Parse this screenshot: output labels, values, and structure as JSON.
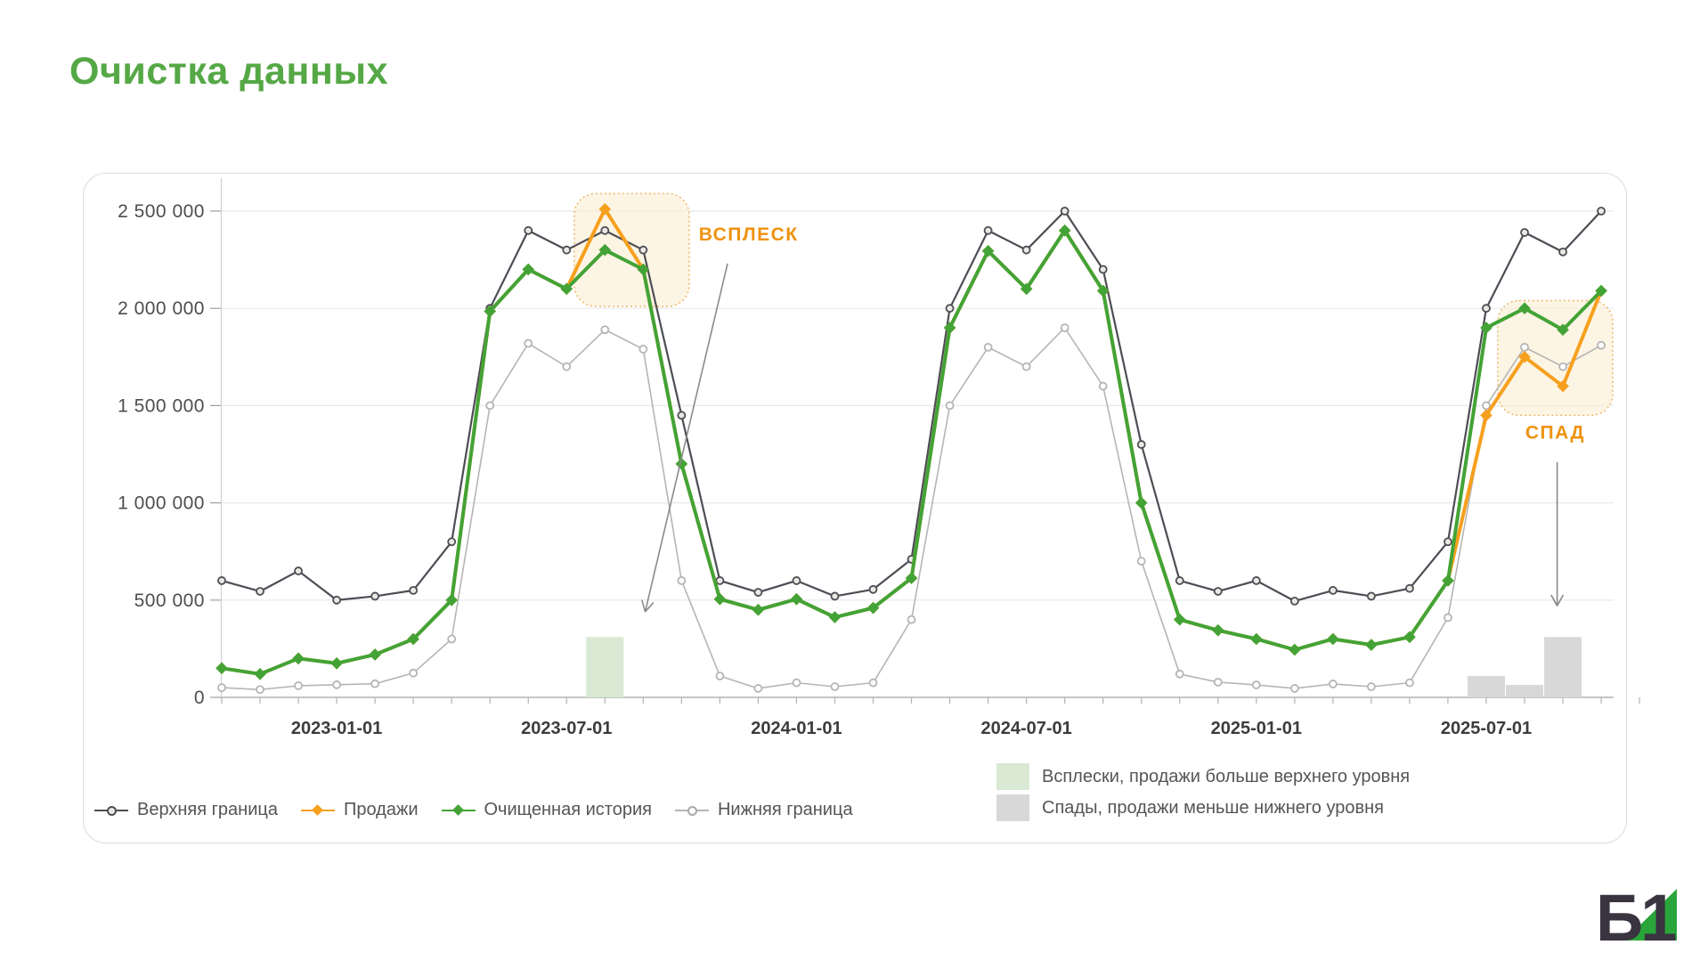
{
  "page": {
    "title": "Очистка данных"
  },
  "logo": {
    "text": "Б1",
    "accent_color": "#2aa53a",
    "text_color": "#3a3340"
  },
  "legend": {
    "series": [
      {
        "label": "Верхняя граница"
      },
      {
        "label": "Продажи"
      },
      {
        "label": "Очищенная история"
      },
      {
        "label": "Нижняя граница"
      }
    ],
    "areas": [
      {
        "label": "Всплески, продажи больше верхнего уровня",
        "color": "#d9e9d4"
      },
      {
        "label": "Спады, продажи меньше нижнего уровня",
        "color": "#d8d8d8"
      }
    ]
  },
  "chart_data": {
    "type": "line",
    "title": "Очистка данных",
    "grid": true,
    "ylim": [
      0,
      2625000
    ],
    "y_ticks": [
      {
        "value": 0,
        "label": "0"
      },
      {
        "value": 500000,
        "label": "500 000"
      },
      {
        "value": 1000000,
        "label": "1 000 000"
      },
      {
        "value": 1500000,
        "label": "1 500 000"
      },
      {
        "value": 2000000,
        "label": "2 000 000"
      },
      {
        "value": 2500000,
        "label": "2 500 000"
      }
    ],
    "x_ticks": [
      {
        "month_index": 3,
        "label": "2023-01-01"
      },
      {
        "month_index": 9,
        "label": "2023-07-01"
      },
      {
        "month_index": 15,
        "label": "2024-01-01"
      },
      {
        "month_index": 21,
        "label": "2024-07-01"
      },
      {
        "month_index": 27,
        "label": "2025-01-01"
      },
      {
        "month_index": 33,
        "label": "2025-07-01"
      }
    ],
    "months": [
      "2022-10",
      "2022-11",
      "2022-12",
      "2023-01",
      "2023-02",
      "2023-03",
      "2023-04",
      "2023-05",
      "2023-06",
      "2023-07",
      "2023-08",
      "2023-09",
      "2023-10",
      "2023-11",
      "2023-12",
      "2024-01",
      "2024-02",
      "2024-03",
      "2024-04",
      "2024-05",
      "2024-06",
      "2024-07",
      "2024-08",
      "2024-09",
      "2024-10",
      "2024-11",
      "2024-12",
      "2025-01",
      "2025-02",
      "2025-03",
      "2025-04",
      "2025-05",
      "2025-06",
      "2025-07",
      "2025-08",
      "2025-09",
      "2025-10"
    ],
    "series": [
      {
        "name": "Верхняя граница",
        "color": "#4d4d55",
        "width": 2.2,
        "marker": "ring",
        "marker_fill": "#ece7e2",
        "values": [
          600000,
          545000,
          650000,
          500000,
          520000,
          550000,
          800000,
          2000000,
          2400000,
          2300000,
          2400000,
          2300000,
          1450000,
          600000,
          540000,
          600000,
          520000,
          555000,
          710000,
          2000000,
          2400000,
          2300000,
          2500000,
          2200000,
          1300000,
          600000,
          545000,
          600000,
          495000,
          550000,
          520000,
          560000,
          800000,
          2000000,
          2390000,
          2290000,
          2500000
        ]
      },
      {
        "name": "Нижняя граница",
        "color": "#b5b5b5",
        "width": 1.6,
        "marker": "ring",
        "marker_fill": "#ffffff",
        "values": [
          50000,
          40000,
          60000,
          65000,
          70000,
          125000,
          300000,
          1500000,
          1820000,
          1700000,
          1890000,
          1790000,
          600000,
          110000,
          46000,
          75000,
          55000,
          75000,
          400000,
          1500000,
          1800000,
          1700000,
          1900000,
          1600000,
          700000,
          120000,
          78000,
          64000,
          46000,
          69000,
          55000,
          75000,
          410000,
          1500000,
          1800000,
          1700000,
          1810000
        ]
      },
      {
        "name": "Продажи",
        "color": "#f6a01e",
        "width": 4,
        "marker": "diamond",
        "values": [
          150000,
          120000,
          200000,
          175000,
          220000,
          300000,
          500000,
          1985000,
          2200000,
          2100000,
          2510000,
          2200000,
          1200000,
          505000,
          450000,
          505000,
          412000,
          460000,
          613000,
          1900000,
          2295000,
          2100000,
          2400000,
          2090000,
          1000000,
          400000,
          345000,
          300000,
          245000,
          300000,
          270000,
          310000,
          600000,
          1450000,
          1750000,
          1600000,
          2090000
        ]
      },
      {
        "name": "Очищенная история",
        "color": "#43a336",
        "width": 4,
        "marker": "diamond",
        "values": [
          150000,
          120000,
          200000,
          175000,
          220000,
          300000,
          500000,
          1985000,
          2200000,
          2100000,
          2300000,
          2200000,
          1200000,
          505000,
          450000,
          505000,
          412000,
          460000,
          613000,
          1900000,
          2295000,
          2100000,
          2400000,
          2090000,
          1000000,
          400000,
          345000,
          300000,
          245000,
          300000,
          270000,
          310000,
          600000,
          1900000,
          2000000,
          1890000,
          2090000
        ]
      }
    ],
    "spike_bars": {
      "color": "#d9e9d4",
      "bars": [
        {
          "month_index": 10,
          "value": 310000
        }
      ]
    },
    "dip_bars": {
      "color": "#d8d8d8",
      "bars": [
        {
          "month_index": 33,
          "value": 110000
        },
        {
          "month_index": 34,
          "value": 64000
        },
        {
          "month_index": 35,
          "value": 310000
        }
      ]
    },
    "annotations": [
      {
        "id": "spike",
        "label": "ВСПЛЕСК",
        "color": "#ef920e",
        "box": {
          "m0": 9.2,
          "m1": 12.2,
          "v0": 2010000,
          "v1": 2590000
        },
        "label_anchor": {
          "m": 13.75,
          "v": 2350000
        },
        "arrow": {
          "from": {
            "m": 13.2,
            "v": 2230000
          },
          "to": {
            "m": 11.05,
            "v": 440000
          }
        }
      },
      {
        "id": "dip",
        "label": "СПАД",
        "color": "#ef920e",
        "box": {
          "m0": 33.3,
          "m1": 36.3,
          "v0": 1450000,
          "v1": 2040000
        },
        "label_anchor": {
          "m": 34.8,
          "v": 1330000
        },
        "arrow": {
          "from": {
            "m": 34.85,
            "v": 1210000
          },
          "to": {
            "m": 34.85,
            "v": 470000
          }
        }
      }
    ]
  }
}
